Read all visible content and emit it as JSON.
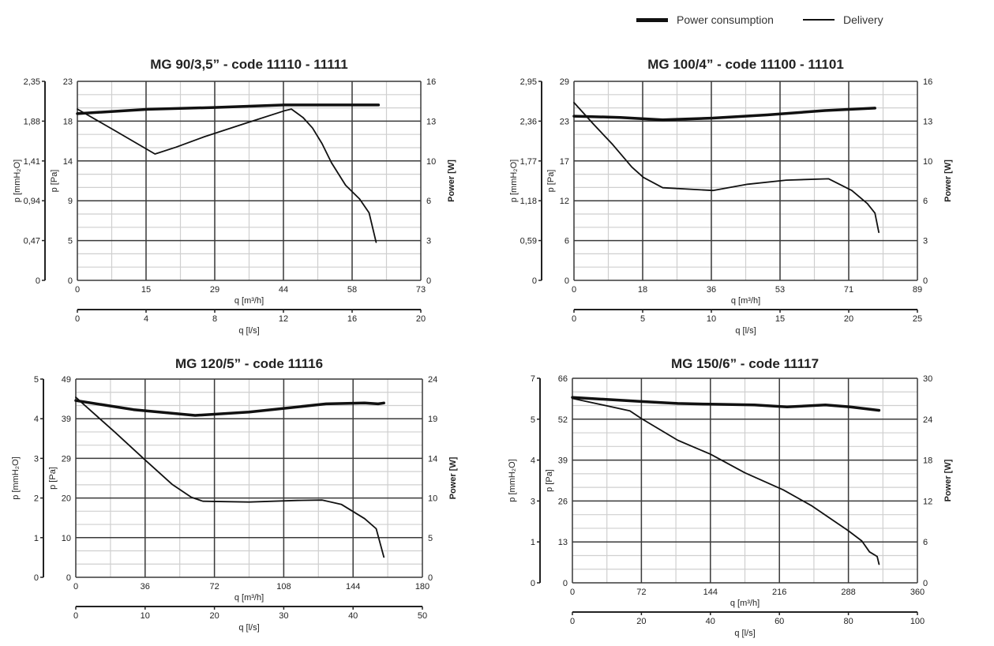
{
  "legend": {
    "power_label": "Power consumption",
    "delivery_label": "Delivery"
  },
  "colors": {
    "curve": "#111111",
    "major_grid": "#3a3a3a",
    "minor_grid": "#cfcfcf"
  },
  "chart_data": [
    {
      "type": "line",
      "title": "MG 90/3,5” - code 11110 - 11111",
      "xlabel": "q [m³/h]",
      "x2label": "q [l/s]",
      "ylabel_mmh2o": "p [mmH₂O]",
      "ylabel": "p [Pa]",
      "y2label": "Power [W]",
      "xlim": [
        0,
        73
      ],
      "ylim": [
        0,
        23
      ],
      "y2lim": [
        0,
        16
      ],
      "x_ticks": [
        "0",
        "15",
        "29",
        "44",
        "58",
        "73"
      ],
      "x2_ticks": [
        "0",
        "4",
        "8",
        "12",
        "16",
        "20"
      ],
      "y_ticks": [
        "0",
        "5",
        "9",
        "14",
        "18",
        "23"
      ],
      "mmh2o_ticks": [
        "0",
        "0,47",
        "0,94",
        "1,41",
        "1,88",
        "2,35"
      ],
      "y2_ticks": [
        "0",
        "3",
        "6",
        "10",
        "13",
        "16"
      ],
      "series": [
        {
          "name": "Power consumption",
          "axis": "y2",
          "points": [
            [
              0,
              13.4
            ],
            [
              15,
              13.75
            ],
            [
              29,
              13.9
            ],
            [
              44,
              14.1
            ],
            [
              64,
              14.1
            ]
          ]
        },
        {
          "name": "Delivery",
          "axis": "y",
          "points": [
            [
              0,
              19.8
            ],
            [
              8,
              17.3
            ],
            [
              16.5,
              14.6
            ],
            [
              21,
              15.4
            ],
            [
              27,
              16.6
            ],
            [
              36,
              18.2
            ],
            [
              44,
              19.6
            ],
            [
              45.5,
              19.8
            ],
            [
              48,
              18.8
            ],
            [
              50,
              17.6
            ],
            [
              52,
              15.8
            ],
            [
              54,
              13.6
            ],
            [
              57,
              11
            ],
            [
              60,
              9.4
            ],
            [
              62,
              7.8
            ],
            [
              63.5,
              4.4
            ]
          ]
        }
      ]
    },
    {
      "type": "line",
      "title": "MG 100/4” - code 11100 - 11101",
      "xlabel": "q [m³/h]",
      "x2label": "q [l/s]",
      "ylabel_mmh2o": "p [mmH₂O]",
      "ylabel": "p [Pa]",
      "y2label": "Power [W]",
      "xlim": [
        0,
        89
      ],
      "ylim": [
        0,
        29
      ],
      "y2lim": [
        0,
        16
      ],
      "x_ticks": [
        "0",
        "18",
        "36",
        "53",
        "71",
        "89"
      ],
      "x2_ticks": [
        "0",
        "5",
        "10",
        "15",
        "20",
        "25"
      ],
      "y_ticks": [
        "0",
        "6",
        "12",
        "17",
        "23",
        "29"
      ],
      "mmh2o_ticks": [
        "0",
        "0,59",
        "1,18",
        "1,77",
        "2,36",
        "2,95"
      ],
      "y2_ticks": [
        "0",
        "3",
        "6",
        "10",
        "13",
        "16"
      ],
      "series": [
        {
          "name": "Power consumption",
          "axis": "y2",
          "points": [
            [
              0,
              13.2
            ],
            [
              12,
              13.1
            ],
            [
              23,
              12.9
            ],
            [
              36,
              13.05
            ],
            [
              50,
              13.3
            ],
            [
              65,
              13.65
            ],
            [
              78,
              13.85
            ]
          ]
        },
        {
          "name": "Delivery",
          "axis": "y",
          "points": [
            [
              0,
              25.9
            ],
            [
              5,
              22.8
            ],
            [
              10,
              19.8
            ],
            [
              15,
              16.5
            ],
            [
              18,
              15
            ],
            [
              23,
              13.5
            ],
            [
              36,
              13.1
            ],
            [
              45,
              14
            ],
            [
              55,
              14.6
            ],
            [
              66,
              14.8
            ],
            [
              72,
              13.1
            ],
            [
              76,
              11.2
            ],
            [
              78,
              9.8
            ],
            [
              79,
              7
            ]
          ]
        }
      ]
    },
    {
      "type": "line",
      "title": "MG 120/5” - code 11116",
      "xlabel": "q [m³/h]",
      "x2label": "q [l/s]",
      "ylabel_mmh2o": "p [mmH₂O]",
      "ylabel": "p [Pa]",
      "y2label": "Power [W]",
      "xlim": [
        0,
        180
      ],
      "ylim": [
        0,
        49
      ],
      "y2lim": [
        0,
        24
      ],
      "x_ticks": [
        "0",
        "36",
        "72",
        "108",
        "144",
        "180"
      ],
      "x2_ticks": [
        "0",
        "10",
        "20",
        "30",
        "40",
        "50"
      ],
      "y_ticks": [
        "0",
        "10",
        "20",
        "29",
        "39",
        "49"
      ],
      "mmh2o_ticks": [
        "0",
        "1",
        "2",
        "3",
        "4",
        "5"
      ],
      "y2_ticks": [
        "0",
        "5",
        "10",
        "14",
        "19",
        "24"
      ],
      "series": [
        {
          "name": "Power consumption",
          "axis": "y2",
          "points": [
            [
              0,
              21.4
            ],
            [
              30,
              20.3
            ],
            [
              62,
              19.6
            ],
            [
              90,
              20
            ],
            [
              130,
              21
            ],
            [
              150,
              21.1
            ],
            [
              157,
              21
            ],
            [
              160,
              21.1
            ]
          ]
        },
        {
          "name": "Delivery",
          "axis": "y",
          "points": [
            [
              0,
              44.5
            ],
            [
              20,
              36
            ],
            [
              36,
              29
            ],
            [
              50,
              23
            ],
            [
              60,
              19.8
            ],
            [
              66,
              18.8
            ],
            [
              90,
              18.6
            ],
            [
              115,
              19
            ],
            [
              128,
              19.1
            ],
            [
              138,
              18
            ],
            [
              150,
              14.5
            ],
            [
              156,
              12
            ],
            [
              160,
              5
            ]
          ]
        }
      ]
    },
    {
      "type": "line",
      "title": "MG 150/6” - code 11117",
      "xlabel": "q [m³/h]",
      "x2label": "q [l/s]",
      "ylabel_mmh2o": "p [mmH₂O]",
      "ylabel": "p [Pa]",
      "y2label": "Power [W]",
      "xlim": [
        0,
        360
      ],
      "ylim": [
        0,
        66
      ],
      "y2lim": [
        0,
        30
      ],
      "x_ticks": [
        "0",
        "72",
        "144",
        "216",
        "288",
        "360"
      ],
      "x2_ticks": [
        "0",
        "20",
        "40",
        "60",
        "80",
        "100"
      ],
      "y_ticks": [
        "0",
        "13",
        "26",
        "39",
        "52",
        "66"
      ],
      "mmh2o_ticks": [
        "0",
        "1",
        "3",
        "4",
        "5",
        "7"
      ],
      "y2_ticks": [
        "0",
        "6",
        "12",
        "18",
        "24",
        "30"
      ],
      "series": [
        {
          "name": "Power consumption",
          "axis": "y2",
          "points": [
            [
              0,
              27.2
            ],
            [
              72,
              26.6
            ],
            [
              110,
              26.3
            ],
            [
              144,
              26.2
            ],
            [
              190,
              26.1
            ],
            [
              224,
              25.8
            ],
            [
              264,
              26.1
            ],
            [
              290,
              25.8
            ],
            [
              320,
              25.3
            ]
          ]
        },
        {
          "name": "Delivery",
          "axis": "y",
          "points": [
            [
              0,
              59.5
            ],
            [
              60,
              55.5
            ],
            [
              72,
              53
            ],
            [
              110,
              46
            ],
            [
              144,
              41.5
            ],
            [
              180,
              35.5
            ],
            [
              220,
              30
            ],
            [
              250,
              24.8
            ],
            [
              288,
              16.8
            ],
            [
              302,
              13.5
            ],
            [
              310,
              10
            ],
            [
              318,
              8.5
            ],
            [
              320,
              6
            ]
          ]
        }
      ]
    }
  ]
}
